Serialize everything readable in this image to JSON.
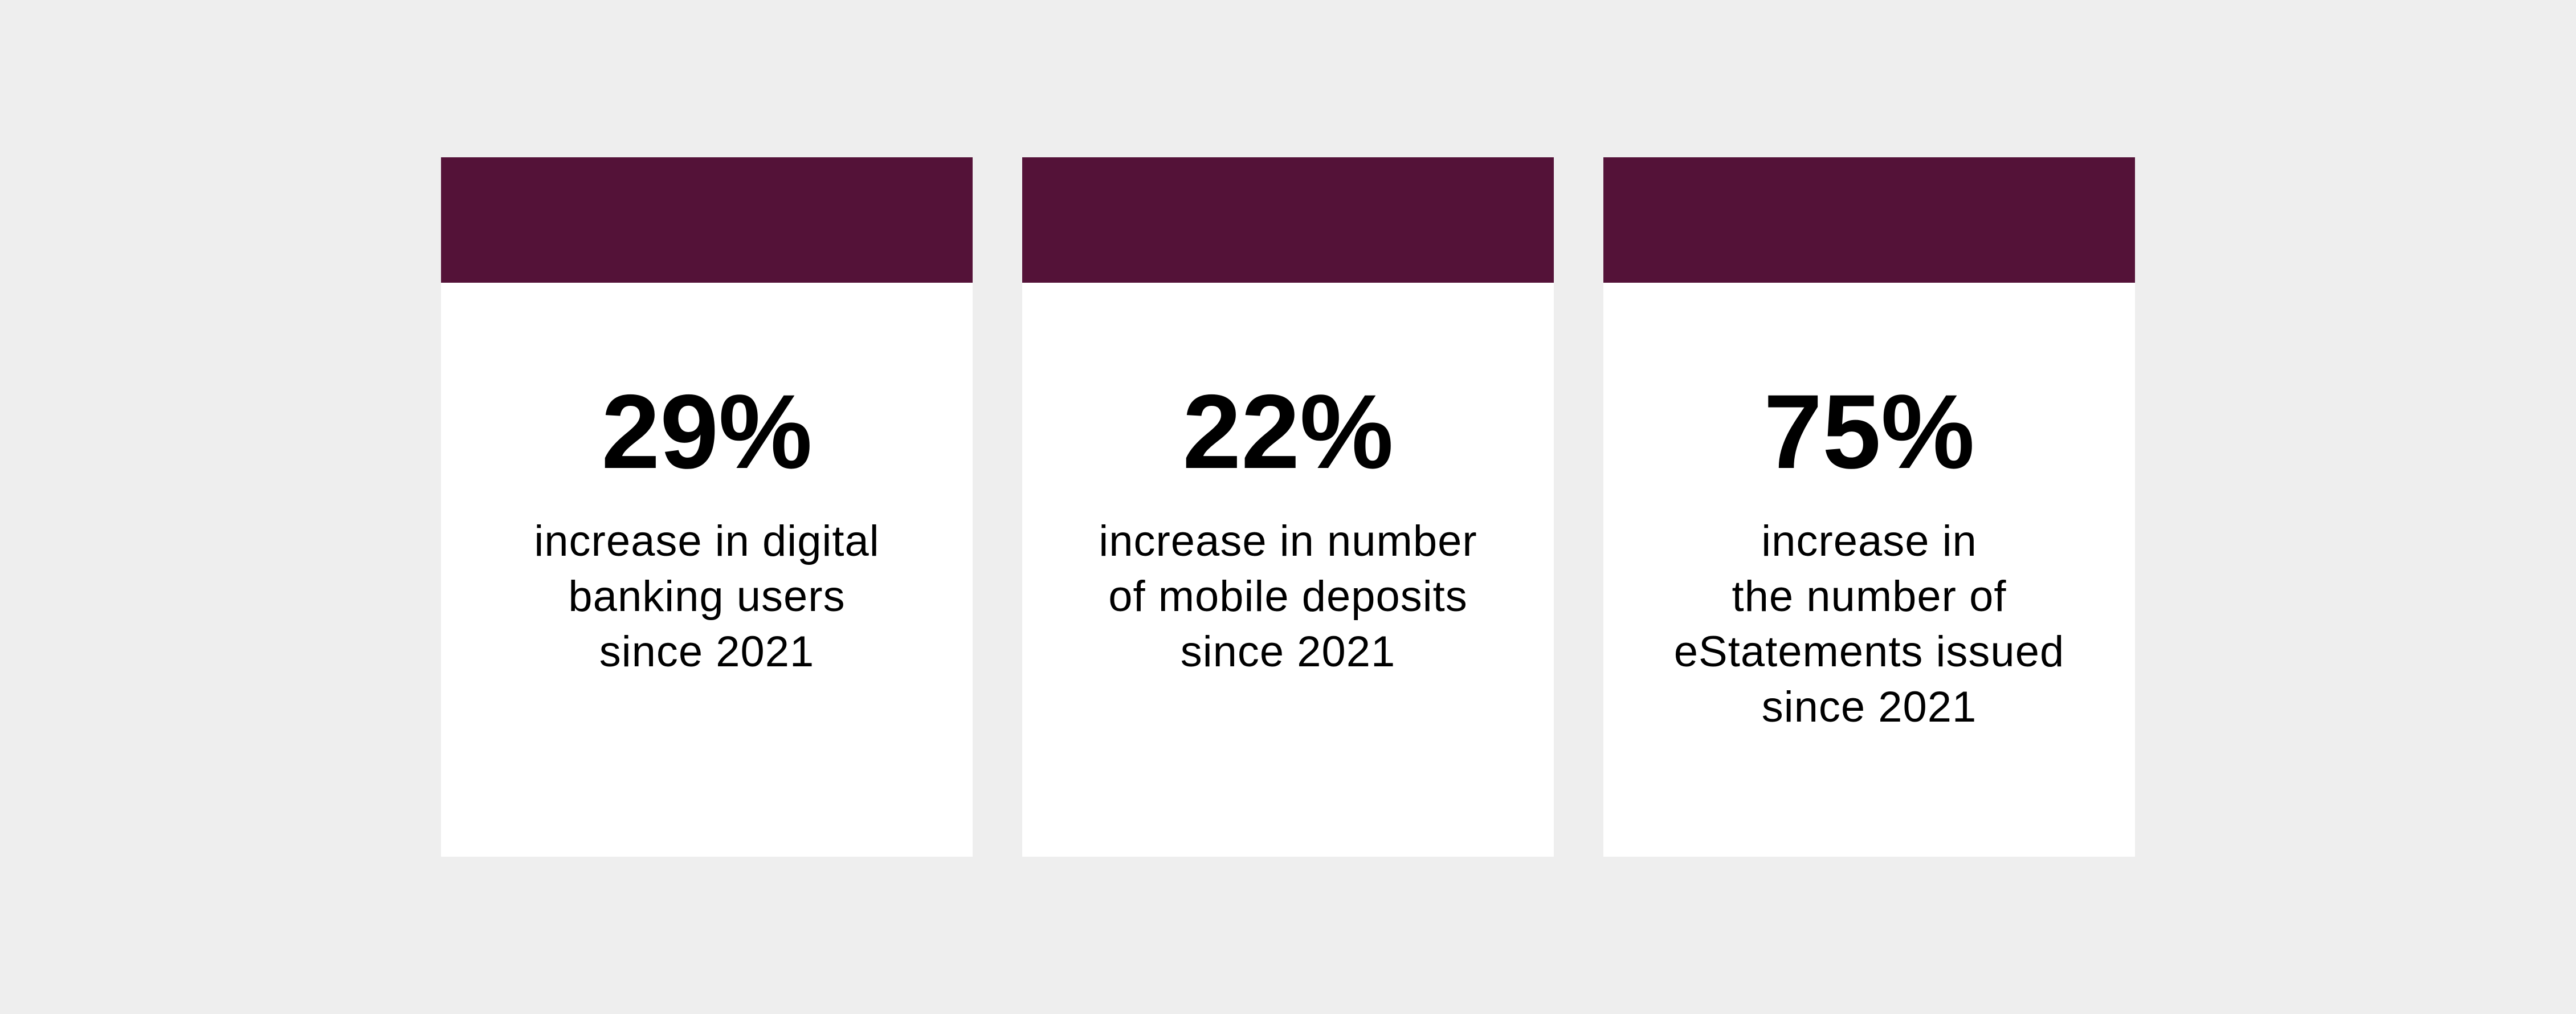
{
  "colors": {
    "page_background": "#eeeeee",
    "card_background": "#ffffff",
    "card_header_accent": "#541238",
    "text": "#000000"
  },
  "cards": [
    {
      "value": "29%",
      "lines": [
        "increase in digital",
        "banking users",
        "since 2021"
      ]
    },
    {
      "value": "22%",
      "lines": [
        "increase in number",
        "of mobile deposits",
        "since 2021"
      ]
    },
    {
      "value": "75%",
      "lines": [
        "increase in",
        "the number of",
        "eStatements issued",
        "since 2021"
      ]
    }
  ],
  "chart_data": {
    "type": "table",
    "title": "",
    "categories": [
      "digital banking users",
      "mobile deposits",
      "eStatements issued"
    ],
    "values": [
      29,
      22,
      75
    ],
    "unit": "%",
    "annotation": "increase since 2021",
    "legend_position": "none",
    "grid": false
  }
}
